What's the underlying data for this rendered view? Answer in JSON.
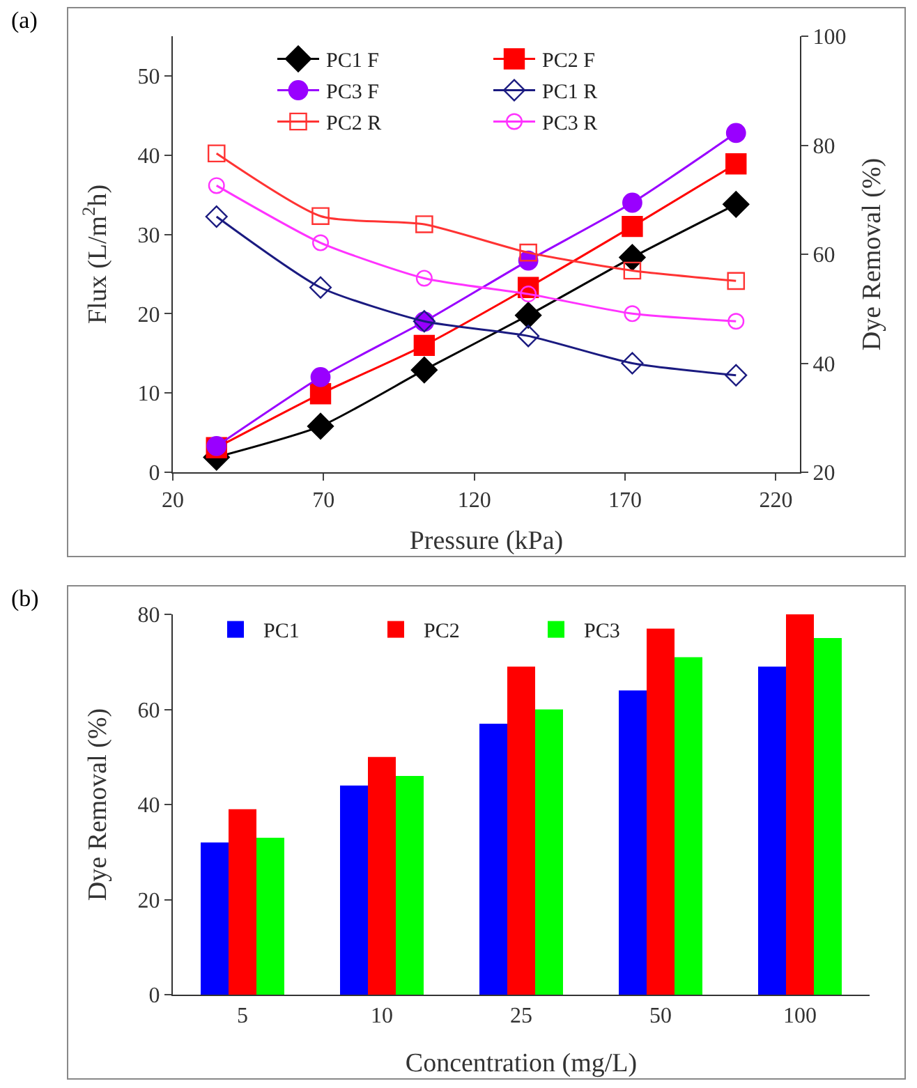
{
  "chart_data": [
    {
      "type": "line",
      "xlabel": "Pressure (kPa)",
      "ylabel": "Flux (L/m$^{2}$h)",
      "y2label": "Dye Removal (%)",
      "annotations": [
        "(a)"
      ],
      "x": [
        34.5,
        69,
        103.4,
        137.9,
        172.4,
        206.8
      ],
      "xlim": [
        20,
        228
      ],
      "xticks": [
        20,
        70,
        120,
        170,
        220
      ],
      "ylim": [
        0,
        55
      ],
      "yticks": [
        0,
        10,
        20,
        30,
        40,
        50
      ],
      "y2lim": [
        20,
        100
      ],
      "y2ticks": [
        20,
        40,
        60,
        80,
        100
      ],
      "grid": false,
      "legend": "top",
      "series": [
        {
          "name": "PC1 F",
          "color": "#000000",
          "marker": "diamond",
          "values": [
            1.9,
            5.8,
            12.9,
            19.8,
            27.1,
            33.8
          ]
        },
        {
          "name": "PC2 F",
          "color": "#ff0000",
          "marker": "square",
          "values": [
            3.1,
            9.9,
            16.0,
            23.3,
            31.0,
            38.9
          ]
        },
        {
          "name": "PC3 F",
          "color": "#9900ff",
          "marker": "circle",
          "values": [
            3.3,
            12.0,
            19.0,
            26.7,
            34.0,
            42.8
          ]
        },
        {
          "name": "PC1 R",
          "color": "#1a1a80",
          "marker": "diamond",
          "axis": "y2",
          "values": [
            66.9,
            53.9,
            47.7,
            45.0,
            40.0,
            37.8
          ]
        },
        {
          "name": "PC2 R",
          "color": "#ff3333",
          "marker": "square",
          "axis": "y2",
          "values": [
            78.5,
            67.0,
            65.5,
            60.3,
            57.0,
            55.1
          ]
        },
        {
          "name": "PC3 R",
          "color": "#ff33ff",
          "marker": "circle",
          "axis": "y2",
          "values": [
            72.6,
            62.1,
            55.6,
            52.7,
            49.1,
            47.7
          ]
        }
      ]
    },
    {
      "type": "bar",
      "xlabel": "Concentration (mg/L)",
      "ylabel": "Dye Removal (%)",
      "annotations": [
        "(b)"
      ],
      "categories": [
        "5",
        "10",
        "25",
        "50",
        "100"
      ],
      "ylim": [
        0,
        80
      ],
      "yticks": [
        0,
        20,
        40,
        60,
        80
      ],
      "grid": false,
      "legend": "top left",
      "series": [
        {
          "name": "PC1",
          "color": "#0000ff",
          "values": [
            32,
            44,
            57,
            64,
            69
          ]
        },
        {
          "name": "PC2",
          "color": "#ff0000",
          "values": [
            39,
            50,
            69,
            77,
            80
          ]
        },
        {
          "name": "PC3",
          "color": "#00ff00",
          "values": [
            33,
            46,
            60,
            71,
            75
          ]
        }
      ]
    }
  ]
}
